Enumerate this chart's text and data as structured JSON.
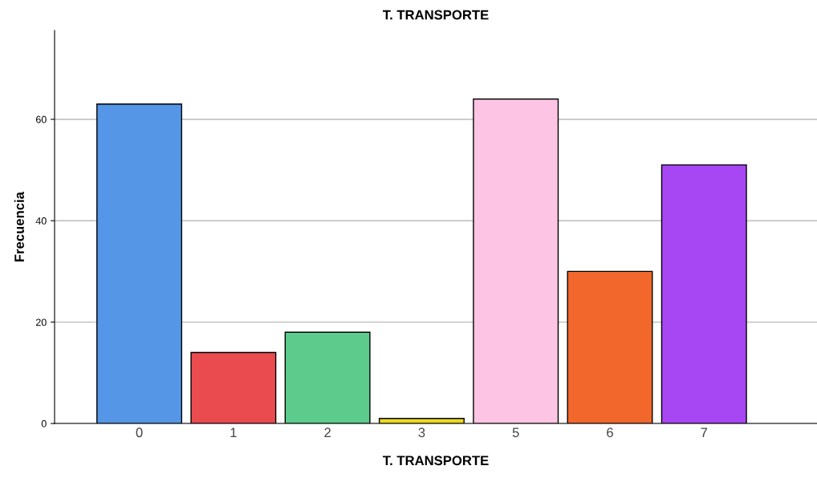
{
  "chart_data": {
    "type": "bar",
    "title": "T. TRANSPORTE",
    "xlabel": "T. TRANSPORTE",
    "ylabel": "Frecuencia",
    "categories": [
      "0",
      "1",
      "2",
      "3",
      "5",
      "6",
      "7"
    ],
    "values": [
      63,
      14,
      18,
      1,
      64,
      30,
      51
    ],
    "colors": [
      "#5596e6",
      "#ea4b4f",
      "#5ccb8b",
      "#ecd91c",
      "#fec4e3",
      "#f2682c",
      "#a747f3"
    ],
    "ylim": [
      0,
      77.5
    ],
    "yticks": [
      0,
      20,
      40,
      60
    ],
    "grid": "y"
  }
}
